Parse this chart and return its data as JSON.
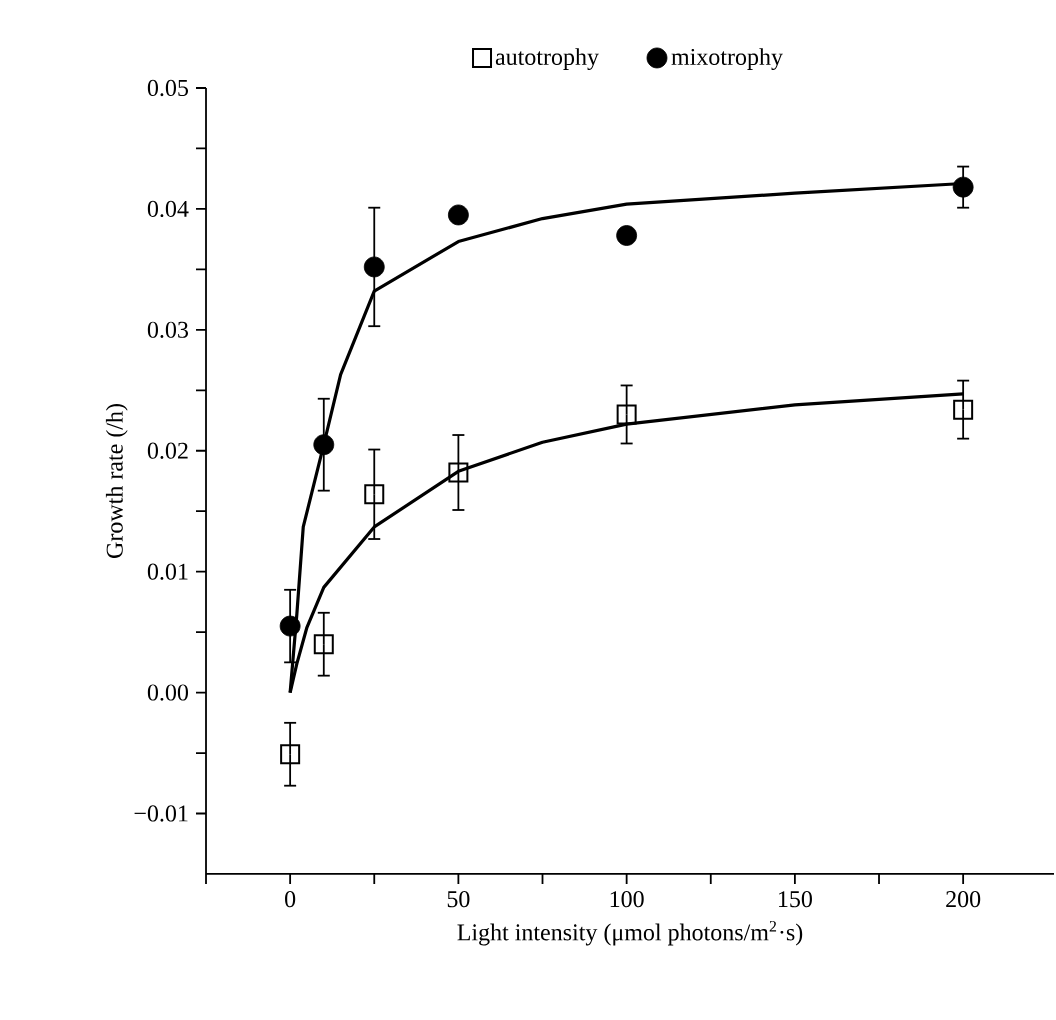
{
  "chart_data": {
    "type": "scatter",
    "xlabel": "Light intensity (μmol photons/m$^{2}$·s)",
    "ylabel": "Growth rate (/h)",
    "xlim": [
      -25,
      227
    ],
    "ylim": [
      -0.015,
      0.05
    ],
    "xticks": [
      {
        "value": -25,
        "label": null
      },
      0,
      {
        "value": 25,
        "label": null
      },
      50,
      {
        "value": 75,
        "label": null
      },
      100,
      {
        "value": 125,
        "label": null
      },
      150,
      {
        "value": 175,
        "label": null
      },
      200
    ],
    "yticks": [
      {
        "value": -0.01,
        "label": "−0.01"
      },
      {
        "value": -0.005,
        "label": null
      },
      {
        "value": 0,
        "label": "0.00"
      },
      {
        "value": 0.005,
        "label": null
      },
      {
        "value": 0.01,
        "label": "0.01"
      },
      {
        "value": 0.015,
        "label": null
      },
      {
        "value": 0.02,
        "label": "0.02"
      },
      {
        "value": 0.025,
        "label": null
      },
      {
        "value": 0.03,
        "label": "0.03"
      },
      {
        "value": 0.035,
        "label": null
      },
      {
        "value": 0.04,
        "label": "0.04"
      },
      {
        "value": 0.045,
        "label": null
      },
      {
        "value": 0.05,
        "label": "0.05"
      }
    ],
    "legend": "top",
    "grid": false,
    "series": [
      {
        "name": "autotrophy",
        "marker": "square",
        "color": "#000000",
        "x": [
          0,
          10,
          25,
          50,
          100,
          200
        ],
        "values": [
          -0.0051,
          0.004,
          0.0164,
          0.0182,
          0.023,
          0.0234
        ],
        "errors": [
          0.0026,
          0.0026,
          0.0037,
          0.0031,
          0.0024,
          0.0024
        ]
      },
      {
        "name": "mixotrophy",
        "marker": "circle",
        "color": "#000000",
        "x": [
          0,
          10,
          25,
          50,
          100,
          200
        ],
        "values": [
          0.0055,
          0.0205,
          0.0352,
          0.0395,
          0.0378,
          0.0418
        ],
        "errors": [
          0.003,
          0.0038,
          0.0049,
          null,
          null,
          0.0017
        ]
      },
      {
        "type": "line",
        "marker": "none",
        "color": "#000000",
        "x": [
          0,
          2,
          5,
          10,
          25,
          50,
          75,
          100,
          150,
          200
        ],
        "values": [
          0.0,
          0.0024,
          0.0054,
          0.0087,
          0.0137,
          0.0183,
          0.0207,
          0.0222,
          0.0238,
          0.0247
        ]
      },
      {
        "type": "line",
        "marker": "none",
        "color": "#000000",
        "x": [
          0,
          2,
          3.9,
          10,
          15,
          25,
          50,
          75,
          100,
          150,
          200
        ],
        "values": [
          0.0,
          0.0065,
          0.0137,
          0.0205,
          0.0263,
          0.0332,
          0.0373,
          0.0392,
          0.0404,
          0.0413,
          0.0421
        ]
      }
    ]
  }
}
